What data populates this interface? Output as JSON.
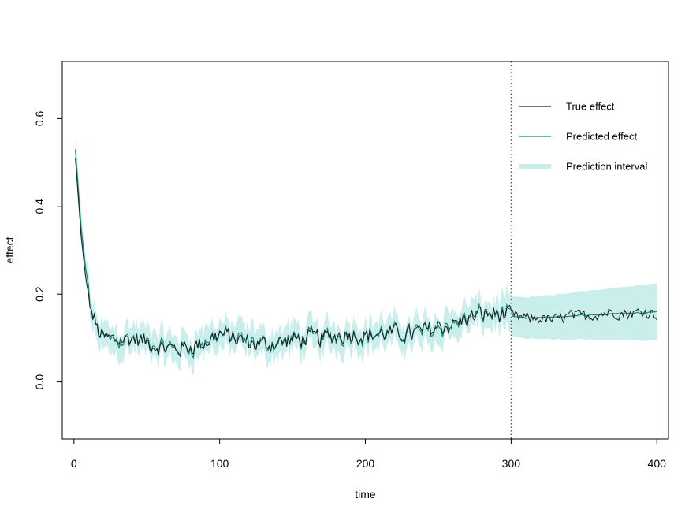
{
  "chart_data": {
    "type": "line",
    "title": "",
    "xlabel": "time",
    "ylabel": "effect",
    "xlim": [
      -8,
      408
    ],
    "ylim": [
      -0.13,
      0.73
    ],
    "xticks": [
      0,
      100,
      200,
      300,
      400
    ],
    "yticks": [
      0.0,
      0.2,
      0.4,
      0.6
    ],
    "xtick_labels": [
      "0",
      "100",
      "200",
      "300",
      "400"
    ],
    "ytick_labels": [
      "0.0",
      "0.2",
      "0.4",
      "0.6"
    ],
    "grid": false,
    "legend_position": "top-right",
    "vline": {
      "x": 300,
      "style": "dotted",
      "color": "#555555"
    },
    "colors": {
      "true": "#1a1a1a",
      "predicted": "#14877a",
      "interval": "#c9eeec"
    },
    "legend": {
      "true_label": "True effect",
      "predicted_label": "Predicted effect",
      "interval_label": "Prediction interval"
    },
    "series_anchors": {
      "x": [
        1,
        3,
        5,
        8,
        12,
        16,
        20,
        30,
        40,
        50,
        60,
        70,
        80,
        90,
        100,
        110,
        120,
        130,
        140,
        150,
        160,
        170,
        180,
        190,
        200,
        210,
        220,
        230,
        240,
        250,
        260,
        270,
        280,
        290,
        300,
        310,
        320,
        330,
        340,
        350,
        360,
        370,
        380,
        390,
        400
      ],
      "true": [
        0.51,
        0.42,
        0.33,
        0.24,
        0.16,
        0.12,
        0.1,
        0.095,
        0.1,
        0.09,
        0.08,
        0.075,
        0.08,
        0.09,
        0.11,
        0.1,
        0.09,
        0.085,
        0.09,
        0.095,
        0.1,
        0.1,
        0.105,
        0.11,
        0.105,
        0.11,
        0.11,
        0.11,
        0.115,
        0.125,
        0.13,
        0.145,
        0.155,
        0.155,
        0.15,
        0.145,
        0.145,
        0.14,
        0.15,
        0.15,
        0.155,
        0.16,
        0.155,
        0.16,
        0.155
      ],
      "predicted": [
        0.53,
        0.44,
        0.34,
        0.25,
        0.16,
        0.12,
        0.1,
        0.095,
        0.1,
        0.09,
        0.08,
        0.075,
        0.08,
        0.09,
        0.11,
        0.1,
        0.09,
        0.085,
        0.09,
        0.095,
        0.1,
        0.1,
        0.105,
        0.11,
        0.105,
        0.11,
        0.11,
        0.11,
        0.115,
        0.125,
        0.13,
        0.145,
        0.155,
        0.155,
        0.15,
        0.145,
        0.147,
        0.148,
        0.15,
        0.152,
        0.153,
        0.155,
        0.156,
        0.158,
        0.16
      ],
      "half_width": [
        0.03,
        0.03,
        0.03,
        0.03,
        0.03,
        0.03,
        0.03,
        0.03,
        0.03,
        0.03,
        0.03,
        0.03,
        0.03,
        0.03,
        0.03,
        0.03,
        0.03,
        0.03,
        0.03,
        0.03,
        0.03,
        0.03,
        0.03,
        0.03,
        0.03,
        0.03,
        0.03,
        0.03,
        0.03,
        0.03,
        0.03,
        0.03,
        0.03,
        0.03,
        0.045,
        0.047,
        0.049,
        0.051,
        0.053,
        0.055,
        0.057,
        0.059,
        0.061,
        0.063,
        0.065
      ]
    },
    "noise_amplitude_before_300": 0.018,
    "noise_amplitude_after_300": 0.012
  }
}
